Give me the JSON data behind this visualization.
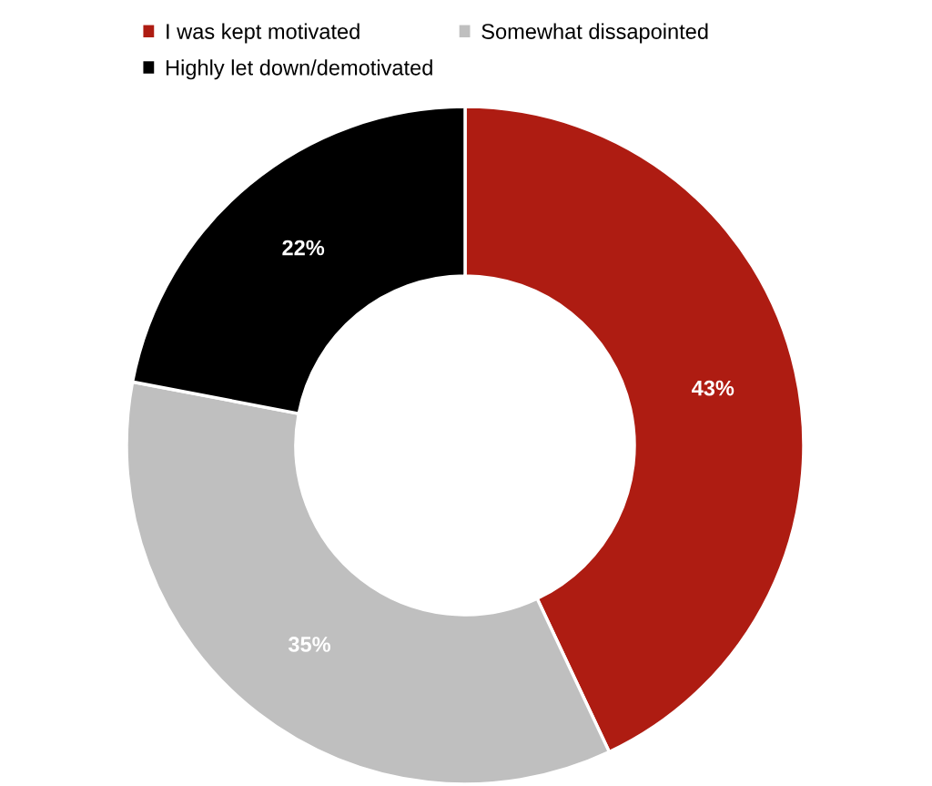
{
  "chart_data": {
    "type": "donut",
    "categories": [
      "I was kept motivated",
      "Somewhat dissapointed",
      "Highly let down/demotivated"
    ],
    "values": [
      43,
      35,
      22
    ],
    "colors": [
      "#ae1c12",
      "#bfbfbf",
      "#000000"
    ],
    "value_labels": [
      "43%",
      "35%",
      "22%"
    ],
    "legend": "top"
  }
}
